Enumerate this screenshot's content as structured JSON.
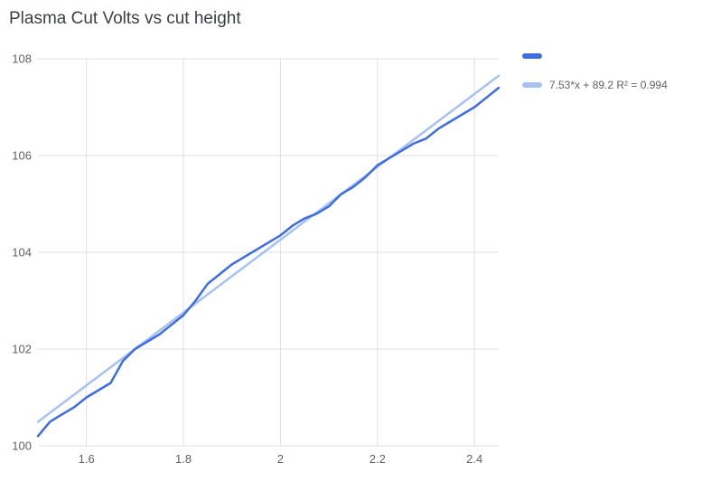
{
  "chart_data": {
    "type": "line",
    "title": "Plasma Cut Volts vs cut height",
    "xlabel": "",
    "ylabel": "",
    "xlim": [
      1.5,
      2.45
    ],
    "ylim": [
      100,
      108
    ],
    "grid": true,
    "legend_position": "right",
    "x_tick_values": [
      1.6,
      1.8,
      2,
      2.2,
      2.4
    ],
    "x_tick_labels": [
      "1.6",
      "1.8",
      "2",
      "2.2",
      "2.4"
    ],
    "y_tick_values": [
      100,
      102,
      104,
      106,
      108
    ],
    "y_tick_labels": [
      "100",
      "102",
      "104",
      "106",
      "108"
    ],
    "series": [
      {
        "name": "",
        "color": "#3d6de1",
        "x": [
          1.5,
          1.525,
          1.55,
          1.575,
          1.6,
          1.625,
          1.65,
          1.675,
          1.7,
          1.725,
          1.75,
          1.775,
          1.8,
          1.825,
          1.85,
          1.875,
          1.9,
          1.925,
          1.95,
          1.975,
          2.0,
          2.025,
          2.05,
          2.075,
          2.1,
          2.125,
          2.15,
          2.175,
          2.2,
          2.225,
          2.25,
          2.275,
          2.3,
          2.325,
          2.35,
          2.375,
          2.4,
          2.425,
          2.45
        ],
        "y": [
          100.2,
          100.5,
          100.65,
          100.8,
          101.0,
          101.15,
          101.3,
          101.75,
          102.0,
          102.15,
          102.3,
          102.5,
          102.7,
          103.0,
          103.35,
          103.55,
          103.75,
          103.9,
          104.05,
          104.2,
          104.35,
          104.55,
          104.7,
          104.8,
          104.95,
          105.2,
          105.35,
          105.55,
          105.8,
          105.95,
          106.1,
          106.25,
          106.35,
          106.55,
          106.7,
          106.85,
          107.0,
          107.2,
          107.4
        ]
      }
    ],
    "trendline": {
      "color": "#a5c2f3",
      "slope": 7.53,
      "intercept": 89.2,
      "r2": 0.994,
      "label": "7.53*x + 89.2 R² = 0.994"
    }
  },
  "styles": {
    "background": "#ffffff",
    "grid_color": "#e0e0e0",
    "tick_label_color": "#616161",
    "title_color": "#3c4043"
  }
}
